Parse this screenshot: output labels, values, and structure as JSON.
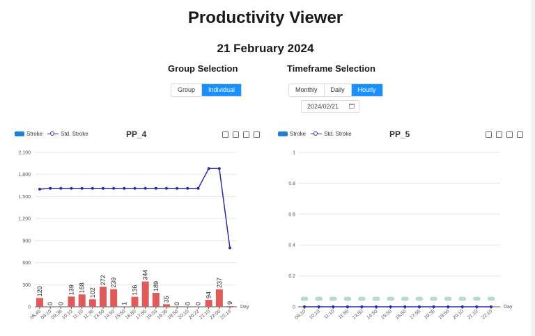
{
  "title": "Productivity Viewer",
  "date": "21 February 2024",
  "group_selection": {
    "title": "Group Selection",
    "options": [
      "Group",
      "Individual"
    ],
    "selected": "Individual"
  },
  "timeframe_selection": {
    "title": "Timeframe Selection",
    "options": [
      "Monthly",
      "Daily",
      "Hourly"
    ],
    "selected": "Hourly"
  },
  "date_picker": {
    "value": "2024/02/21",
    "icon": "calendar-icon"
  },
  "colors": {
    "accent": "#1890ff",
    "stroke_bar": "#e05a5a",
    "std_line": "#2a2aa5",
    "legend_stroke": "#1e7fd6",
    "pp5_marker": "#b8dcc8"
  },
  "toolbox_icons": [
    "zoom-icon",
    "zoom-reset-icon",
    "download-icon",
    "data-view-icon"
  ],
  "chart_data": [
    {
      "type": "bar",
      "title": "PP_4",
      "legend": [
        "Stroke",
        "Std. Stroke"
      ],
      "legend_position": "top-left",
      "xlabel": "Day",
      "categories": [
        "08:45",
        "09:10",
        "09:36",
        "10:10",
        "11:10",
        "11:35",
        "13:50",
        "14:50",
        "15:50",
        "16:50",
        "17:55",
        "19:03",
        "19:35",
        "19:50",
        "20:10",
        "20:22",
        "21:10",
        "22:00",
        "22:10"
      ],
      "x_tick_labels": [
        "08:45",
        "09:10",
        "09:36",
        "10:10",
        "11:10",
        "11:35",
        "13:50",
        "14:50",
        "15:50",
        "16:50",
        "17:55",
        "19:03",
        "19:35",
        "19:50",
        "20:10",
        "20:22",
        "21:10",
        "22:00",
        "22:10"
      ],
      "y_tick_labels": [
        "0",
        "300",
        "600",
        "900",
        "1,200",
        "1,500",
        "1,800",
        "2,100"
      ],
      "ylim": [
        0,
        2100
      ],
      "grid": true,
      "series": [
        {
          "name": "Stroke",
          "type": "bar",
          "values": [
            120,
            0,
            0,
            139,
            168,
            102,
            272,
            239,
            1,
            136,
            344,
            189,
            35,
            0,
            0,
            0,
            94,
            237,
            9
          ],
          "labels": [
            "120",
            "0",
            "0",
            "139",
            "168",
            "102",
            "272",
            "239",
            "1",
            "136",
            "344",
            "189",
            "35",
            "0",
            "0",
            "0",
            "94",
            "237",
            "9"
          ]
        },
        {
          "name": "Std. Stroke",
          "type": "line",
          "values": [
            1600,
            1610,
            1610,
            1610,
            1610,
            1610,
            1610,
            1610,
            1610,
            1610,
            1610,
            1610,
            1610,
            1610,
            1610,
            1610,
            1880,
            1880,
            800
          ]
        }
      ]
    },
    {
      "type": "bar",
      "title": "PP_5",
      "legend": [
        "Stroke",
        "Std. Stroke"
      ],
      "legend_position": "top-left",
      "xlabel": "Day",
      "categories": [
        "09:10",
        "10:10",
        "11:10",
        "11:55",
        "13:50",
        "14:50",
        "15:50",
        "16:50",
        "17:55",
        "19:35",
        "19:50",
        "20:10",
        "21:10",
        "22:10"
      ],
      "x_tick_labels": [
        "09:10",
        "10:10",
        "11:10",
        "11:55",
        "13:50",
        "14:50",
        "15:50",
        "16:50",
        "17:55",
        "19:35",
        "19:50",
        "20:10",
        "21:10",
        "22:10"
      ],
      "y_tick_labels": [
        "0",
        "0.2",
        "0.4",
        "0.6",
        "0.8",
        "1"
      ],
      "ylim": [
        0,
        1
      ],
      "grid": true,
      "series": [
        {
          "name": "Stroke",
          "type": "bar",
          "values": [
            0,
            0,
            0,
            0,
            0,
            0,
            0,
            0,
            0,
            0,
            0,
            0,
            0,
            0
          ]
        },
        {
          "name": "Std. Stroke",
          "type": "line",
          "values": [
            0,
            0,
            0,
            0,
            0,
            0,
            0,
            0,
            0,
            0,
            0,
            0,
            0,
            0
          ]
        }
      ]
    }
  ]
}
